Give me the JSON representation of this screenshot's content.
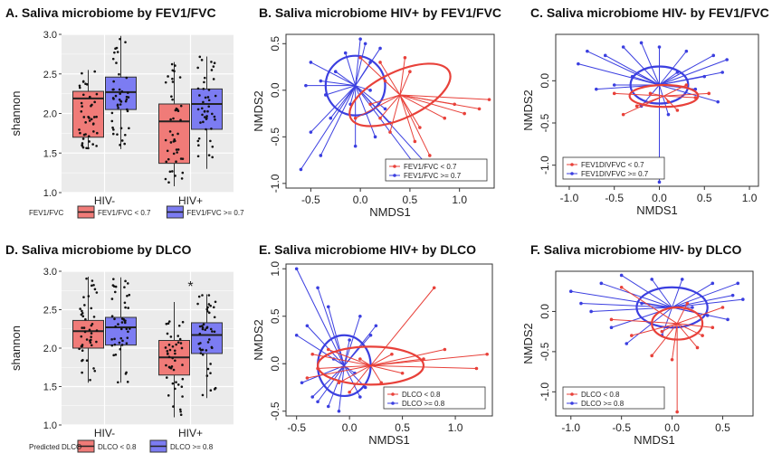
{
  "colors": {
    "red": "#e8413a",
    "blue": "#3b3fe0",
    "box_red": "#f07b78",
    "box_blue": "#7c7cf2",
    "box_bg": "#ebebeb",
    "grid": "#ffffff"
  },
  "chart_data": [
    {
      "id": "A",
      "type": "box",
      "title": "A.  Saliva microbiome by FEV1/FVC",
      "xlabel": "",
      "ylabel": "shannon",
      "categories": [
        "HIV-",
        "HIV+"
      ],
      "ylim": [
        1.0,
        3.0
      ],
      "yticks": [
        "1.0",
        "1.5",
        "2.0",
        "2.5",
        "3.0"
      ],
      "legend_title": "FEV1/FVC",
      "series": [
        {
          "name": "FEV1/FVC < 0.7",
          "color": "red",
          "boxes": [
            {
              "q1": 1.7,
              "median": 2.19,
              "q3": 2.28,
              "min": 1.55,
              "max": 2.55
            },
            {
              "q1": 1.37,
              "median": 1.9,
              "q3": 2.12,
              "min": 1.08,
              "max": 2.65
            }
          ]
        },
        {
          "name": "FEV1/FVC >= 0.7",
          "color": "blue",
          "boxes": [
            {
              "q1": 2.05,
              "median": 2.27,
              "q3": 2.46,
              "min": 1.55,
              "max": 2.98
            },
            {
              "q1": 1.8,
              "median": 2.12,
              "q3": 2.31,
              "min": 1.3,
              "max": 2.72
            }
          ]
        }
      ],
      "annotations": []
    },
    {
      "id": "D",
      "type": "box",
      "title": "D.     Saliva microbiome by DLCO",
      "xlabel": "",
      "ylabel": "shannon",
      "categories": [
        "HIV-",
        "HIV+"
      ],
      "ylim": [
        1.0,
        3.0
      ],
      "yticks": [
        "1.0",
        "1.5",
        "2.0",
        "2.5",
        "3.0"
      ],
      "legend_title": "Predicted DLCO",
      "series": [
        {
          "name": "DLCO < 0.8",
          "color": "red",
          "boxes": [
            {
              "q1": 2.0,
              "median": 2.22,
              "q3": 2.36,
              "min": 1.55,
              "max": 2.93
            },
            {
              "q1": 1.65,
              "median": 1.88,
              "q3": 2.1,
              "min": 1.1,
              "max": 2.6
            }
          ]
        },
        {
          "name": "DLCO >= 0.8",
          "color": "blue",
          "boxes": [
            {
              "q1": 2.04,
              "median": 2.27,
              "q3": 2.4,
              "min": 1.55,
              "max": 2.92
            },
            {
              "q1": 1.93,
              "median": 2.17,
              "q3": 2.33,
              "min": 1.35,
              "max": 2.7
            }
          ]
        }
      ],
      "annotations": [
        "*"
      ]
    },
    {
      "id": "B",
      "type": "scatter",
      "title": "B.  Saliva microbiome HIV+ by FEV1/FVC",
      "xlabel": "NMDS1",
      "ylabel": "NMDS2",
      "xlim": [
        -0.75,
        1.35
      ],
      "ylim": [
        -1.05,
        0.6
      ],
      "xticks": [
        -0.5,
        0.0,
        0.5,
        1.0
      ],
      "xtick_labels": [
        "-0.5",
        "0.0",
        "0.5",
        "1.0"
      ],
      "yticks": [
        -1.0,
        -0.5,
        0.0,
        0.5
      ],
      "ytick_labels": [
        "-1.0",
        "-0.5",
        "0.0",
        "0.5"
      ],
      "legend": [
        "FEV1/FVC < 0.7",
        "FEV1/FVC >= 0.7"
      ],
      "legend_position": "bottom-right",
      "series": [
        {
          "name": "FEV1/FVC < 0.7",
          "color": "red",
          "centroid": [
            0.4,
            -0.05
          ],
          "ellipse": {
            "rx": 0.55,
            "ry": 0.25,
            "angle": -25
          },
          "points": [
            [
              1.2,
              -0.2
            ],
            [
              1.3,
              -0.1
            ],
            [
              1.05,
              -0.25
            ],
            [
              0.85,
              -0.3
            ],
            [
              0.6,
              -0.4
            ],
            [
              0.55,
              -0.55
            ],
            [
              0.7,
              -0.7
            ],
            [
              0.3,
              -0.45
            ],
            [
              0.2,
              -0.3
            ],
            [
              0.1,
              -0.15
            ],
            [
              0.95,
              -0.15
            ],
            [
              0.5,
              0.2
            ],
            [
              0.2,
              0.3
            ],
            [
              0.0,
              0.35
            ],
            [
              0.25,
              0.1
            ],
            [
              0.45,
              0.35
            ],
            [
              -0.05,
              -0.3
            ]
          ]
        },
        {
          "name": "FEV1/FVC >= 0.7",
          "color": "blue",
          "centroid": [
            -0.05,
            0.05
          ],
          "ellipse": {
            "rx": 0.3,
            "ry": 0.32,
            "angle": 0
          },
          "points": [
            [
              -0.6,
              -0.85
            ],
            [
              -0.4,
              -0.7
            ],
            [
              -0.5,
              -0.45
            ],
            [
              -0.3,
              -0.3
            ],
            [
              -0.4,
              0.1
            ],
            [
              -0.5,
              0.3
            ],
            [
              -0.25,
              0.2
            ],
            [
              -0.15,
              0.4
            ],
            [
              0.0,
              0.55
            ],
            [
              0.05,
              0.5
            ],
            [
              0.2,
              0.45
            ],
            [
              0.1,
              0.3
            ],
            [
              0.25,
              -0.2
            ],
            [
              0.15,
              -0.5
            ],
            [
              -0.05,
              -0.6
            ],
            [
              0.3,
              -0.35
            ],
            [
              0.8,
              -0.95
            ],
            [
              0.55,
              -0.8
            ],
            [
              -0.55,
              0.05
            ],
            [
              -0.35,
              -0.05
            ],
            [
              0.1,
              0.0
            ],
            [
              -0.1,
              -0.15
            ]
          ]
        }
      ]
    },
    {
      "id": "C",
      "type": "scatter",
      "title": "C.  Saliva microbiome HIV- by FEV1/FVC",
      "xlabel": "NMDS1",
      "ylabel": "NMDS2",
      "xlim": [
        -1.15,
        1.1
      ],
      "ylim": [
        -1.25,
        0.55
      ],
      "xticks": [
        -1.0,
        -0.5,
        0.0,
        0.5,
        1.0
      ],
      "xtick_labels": [
        "-1.0",
        "-0.5",
        "0.0",
        "0.5",
        "1.0"
      ],
      "yticks": [
        -1.0,
        -0.5,
        0.0
      ],
      "ytick_labels": [
        "-1.0",
        "-0.5",
        "0.0"
      ],
      "legend": [
        "FEV1DIVFVC < 0.7",
        "FEV1DIVFVC >= 0.7"
      ],
      "legend_position": "bottom-left",
      "series": [
        {
          "name": "FEV1DIVFVC < 0.7",
          "color": "red",
          "centroid": [
            0.05,
            -0.18
          ],
          "ellipse": {
            "rx": 0.38,
            "ry": 0.13,
            "angle": 0
          },
          "points": [
            [
              -0.4,
              -0.4
            ],
            [
              -0.25,
              -0.3
            ],
            [
              -0.1,
              -0.15
            ],
            [
              0.2,
              -0.35
            ],
            [
              0.4,
              -0.2
            ],
            [
              0.55,
              -0.15
            ],
            [
              0.3,
              -0.05
            ],
            [
              -0.5,
              -0.15
            ],
            [
              0.1,
              -0.25
            ]
          ]
        },
        {
          "name": "FEV1DIVFVC >= 0.7",
          "color": "blue",
          "centroid": [
            0.0,
            -0.05
          ],
          "ellipse": {
            "rx": 0.32,
            "ry": 0.22,
            "angle": 0
          },
          "points": [
            [
              -0.8,
              0.35
            ],
            [
              -0.6,
              0.3
            ],
            [
              -0.4,
              0.4
            ],
            [
              -0.2,
              0.45
            ],
            [
              0.0,
              0.4
            ],
            [
              0.3,
              0.35
            ],
            [
              0.6,
              0.3
            ],
            [
              0.7,
              0.1
            ],
            [
              0.5,
              0.05
            ],
            [
              -0.7,
              -0.1
            ],
            [
              -0.5,
              -0.05
            ],
            [
              -0.3,
              0.05
            ],
            [
              0.2,
              0.1
            ],
            [
              0.4,
              -0.1
            ],
            [
              0.65,
              -0.25
            ],
            [
              -0.2,
              -0.3
            ],
            [
              0.1,
              -0.4
            ],
            [
              0.0,
              -1.2
            ],
            [
              -0.9,
              0.2
            ],
            [
              0.75,
              0.25
            ]
          ]
        }
      ]
    },
    {
      "id": "E",
      "type": "scatter",
      "title": "E.    Saliva microbiome HIV+ by DLCO",
      "xlabel": "NMDS1",
      "ylabel": "NMDS2",
      "xlim": [
        -0.6,
        1.35
      ],
      "ylim": [
        -0.55,
        1.05
      ],
      "xticks": [
        -0.5,
        0.0,
        0.5,
        1.0
      ],
      "xtick_labels": [
        "-0.5",
        "0.0",
        "0.5",
        "1.0"
      ],
      "yticks": [
        -0.5,
        0.0,
        0.5,
        1.0
      ],
      "ytick_labels": [
        "-0.5",
        "0.0",
        "0.5",
        "1.0"
      ],
      "legend": [
        "DLCO < 0.8",
        "DLCO >= 0.8"
      ],
      "legend_position": "bottom-right",
      "series": [
        {
          "name": "DLCO < 0.8",
          "color": "red",
          "centroid": [
            0.2,
            -0.02
          ],
          "ellipse": {
            "rx": 0.5,
            "ry": 0.2,
            "angle": 0
          },
          "points": [
            [
              0.8,
              0.8
            ],
            [
              1.3,
              0.1
            ],
            [
              1.2,
              -0.05
            ],
            [
              0.9,
              0.15
            ],
            [
              0.7,
              0.05
            ],
            [
              0.5,
              -0.1
            ],
            [
              0.4,
              0.1
            ],
            [
              -0.3,
              -0.05
            ],
            [
              -0.2,
              0.15
            ],
            [
              -0.1,
              -0.2
            ],
            [
              0.0,
              -0.3
            ],
            [
              0.3,
              -0.2
            ],
            [
              -0.4,
              -0.15
            ],
            [
              0.1,
              0.05
            ],
            [
              -0.35,
              0.1
            ]
          ]
        },
        {
          "name": "DLCO >= 0.8",
          "color": "blue",
          "centroid": [
            -0.05,
            -0.02
          ],
          "ellipse": {
            "rx": 0.25,
            "ry": 0.32,
            "angle": 0
          },
          "points": [
            [
              -0.5,
              1.0
            ],
            [
              -0.3,
              0.8
            ],
            [
              -0.2,
              0.6
            ],
            [
              -0.4,
              0.4
            ],
            [
              -0.5,
              0.3
            ],
            [
              0.1,
              0.5
            ],
            [
              0.2,
              0.3
            ],
            [
              0.0,
              0.25
            ],
            [
              -0.3,
              -0.4
            ],
            [
              -0.2,
              -0.45
            ],
            [
              -0.1,
              -0.5
            ],
            [
              0.1,
              -0.35
            ],
            [
              -0.45,
              -0.2
            ],
            [
              0.05,
              -0.1
            ],
            [
              -0.15,
              0.05
            ],
            [
              -0.35,
              -0.35
            ],
            [
              0.25,
              0.4
            ],
            [
              0.15,
              -0.25
            ]
          ]
        }
      ]
    },
    {
      "id": "F",
      "type": "scatter",
      "title": "F.    Saliva microbiome HIV- by DLCO",
      "xlabel": "NMDS1",
      "ylabel": "NMDS2",
      "xlim": [
        -1.15,
        0.8
      ],
      "ylim": [
        -1.3,
        0.5
      ],
      "xticks": [
        -1.0,
        -0.5,
        0.0,
        0.5
      ],
      "xtick_labels": [
        "-1.0",
        "-0.5",
        "0.0",
        "0.5"
      ],
      "yticks": [
        -1.0,
        -0.5,
        0.0
      ],
      "ytick_labels": [
        "-1.0",
        "-0.5",
        "0.0"
      ],
      "legend": [
        "DLCO < 0.8",
        "DLCO >= 0.8"
      ],
      "legend_position": "bottom-left",
      "series": [
        {
          "name": "DLCO < 0.8",
          "color": "red",
          "centroid": [
            0.05,
            -0.15
          ],
          "ellipse": {
            "rx": 0.25,
            "ry": 0.2,
            "angle": 0
          },
          "points": [
            [
              -0.5,
              0.3
            ],
            [
              -0.4,
              -0.3
            ],
            [
              -0.2,
              -0.55
            ],
            [
              0.0,
              -0.6
            ],
            [
              0.05,
              -1.25
            ],
            [
              0.25,
              -0.45
            ],
            [
              0.4,
              -0.2
            ],
            [
              0.5,
              0.05
            ],
            [
              -0.1,
              -0.25
            ],
            [
              0.3,
              -0.3
            ],
            [
              -0.6,
              -0.1
            ],
            [
              0.15,
              0.1
            ]
          ]
        },
        {
          "name": "DLCO >= 0.8",
          "color": "blue",
          "centroid": [
            0.0,
            0.05
          ],
          "ellipse": {
            "rx": 0.35,
            "ry": 0.25,
            "angle": 0
          },
          "points": [
            [
              -1.0,
              0.25
            ],
            [
              -0.7,
              0.35
            ],
            [
              -0.5,
              0.45
            ],
            [
              -0.2,
              0.4
            ],
            [
              0.1,
              0.4
            ],
            [
              0.4,
              0.35
            ],
            [
              0.6,
              0.2
            ],
            [
              0.7,
              0.15
            ],
            [
              0.55,
              -0.1
            ],
            [
              -0.8,
              0.0
            ],
            [
              -0.6,
              -0.2
            ],
            [
              -0.45,
              -0.4
            ],
            [
              -0.3,
              0.1
            ],
            [
              0.2,
              0.05
            ],
            [
              -0.1,
              -0.3
            ],
            [
              0.35,
              -0.05
            ],
            [
              -0.9,
              0.1
            ],
            [
              0.65,
              0.35
            ]
          ]
        }
      ]
    }
  ]
}
